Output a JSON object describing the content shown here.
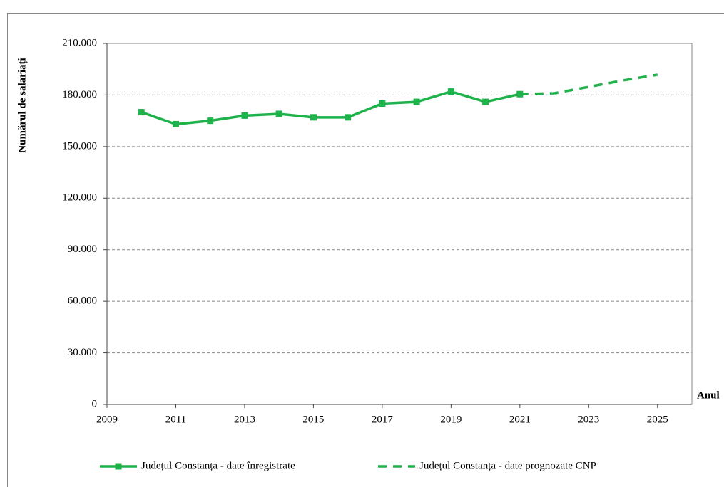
{
  "chart_data": {
    "type": "line",
    "ylabel": "Numărul de salariați",
    "xlabel": "Anul",
    "x": [
      2010,
      2011,
      2012,
      2013,
      2014,
      2015,
      2016,
      2017,
      2018,
      2019,
      2020,
      2021,
      2022,
      2023,
      2024,
      2025
    ],
    "series": [
      {
        "name": "Județul Constanța - date înregistrate",
        "color": "#1fb14a",
        "dashed": false,
        "markers": true,
        "values": [
          170000,
          163000,
          165000,
          168000,
          169000,
          167000,
          167000,
          175000,
          176000,
          182000,
          176000,
          180500,
          null,
          null,
          null,
          null
        ]
      },
      {
        "name": "Județul Constanța - date prognozate CNP",
        "color": "#1fb14a",
        "dashed": true,
        "markers": false,
        "values": [
          null,
          null,
          null,
          null,
          null,
          null,
          null,
          null,
          null,
          null,
          null,
          180500,
          181000,
          184700,
          188500,
          191800
        ]
      }
    ],
    "xlim": [
      2009,
      2026
    ],
    "xticks": [
      2009,
      2011,
      2013,
      2015,
      2017,
      2019,
      2021,
      2023,
      2025
    ],
    "ylim": [
      0,
      210000
    ],
    "yticks": [
      0,
      {
        "value": 30000,
        "label": "30.000"
      },
      {
        "value": 60000,
        "label": "60.000"
      },
      {
        "value": 90000,
        "label": "90.000"
      },
      {
        "value": 120000,
        "label": "120.000"
      },
      {
        "value": 150000,
        "label": "150.000"
      },
      {
        "value": 180000,
        "label": "180.000"
      },
      {
        "value": 210000,
        "label": "210.000"
      }
    ],
    "grid": true,
    "legend": "bottom"
  }
}
